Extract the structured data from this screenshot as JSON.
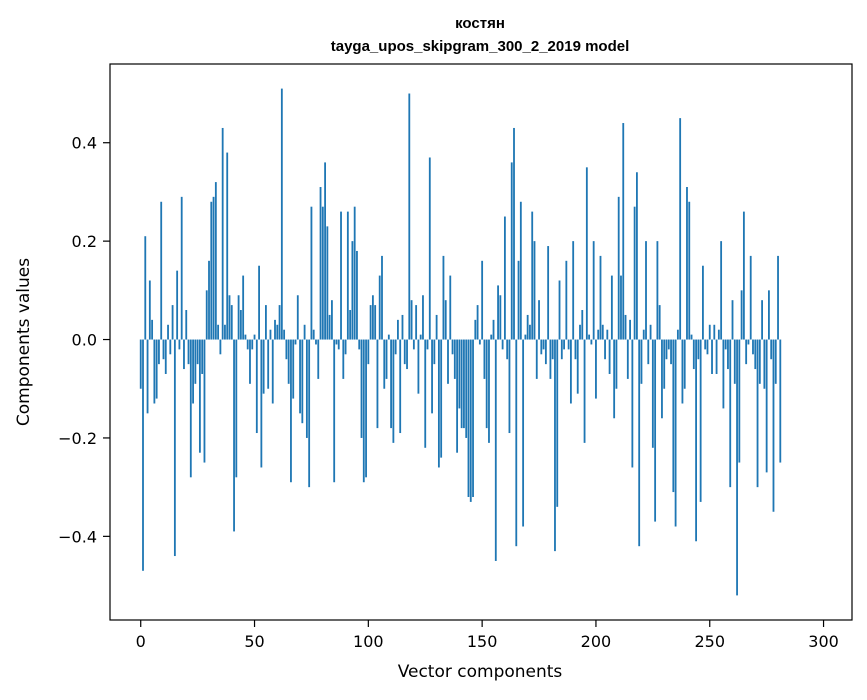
{
  "chart_data": {
    "type": "bar",
    "title": "костян",
    "subtitle": "tayga_upos_skipgram_300_2_2019 model",
    "xlabel": "Vector components",
    "ylabel": "Components values",
    "xlim": [
      -13.5,
      312.5
    ],
    "ylim": [
      -0.57,
      0.56
    ],
    "xticks": [
      0,
      50,
      100,
      150,
      200,
      250,
      300
    ],
    "yticks": [
      -0.4,
      -0.2,
      0.0,
      0.2,
      0.4
    ],
    "xtick_labels": [
      "0",
      "50",
      "100",
      "150",
      "200",
      "250",
      "300"
    ],
    "ytick_labels": [
      "−0.4",
      "−0.2",
      "0.0",
      "0.2",
      "0.4"
    ],
    "bar_color": "#1f77b4",
    "values": [
      -0.1,
      -0.47,
      0.21,
      -0.15,
      0.12,
      0.04,
      -0.13,
      -0.12,
      -0.05,
      0.28,
      -0.04,
      -0.07,
      0.03,
      -0.03,
      0.07,
      -0.44,
      0.14,
      -0.02,
      0.29,
      -0.06,
      0.06,
      -0.05,
      -0.28,
      -0.13,
      -0.09,
      -0.05,
      -0.23,
      -0.07,
      -0.25,
      0.1,
      0.16,
      0.28,
      0.29,
      0.32,
      0.03,
      -0.03,
      0.43,
      0.03,
      0.38,
      0.09,
      0.07,
      -0.39,
      -0.28,
      0.09,
      0.06,
      0.13,
      0.01,
      -0.02,
      -0.09,
      -0.02,
      0.01,
      -0.19,
      0.15,
      -0.26,
      -0.11,
      0.07,
      -0.1,
      0.02,
      -0.13,
      0.04,
      0.03,
      0.07,
      0.51,
      0.02,
      -0.04,
      -0.09,
      -0.29,
      -0.12,
      -0.01,
      0.09,
      -0.15,
      -0.17,
      0.03,
      -0.2,
      -0.3,
      0.27,
      0.02,
      -0.01,
      -0.08,
      0.31,
      0.27,
      0.36,
      0.23,
      0.05,
      0.08,
      -0.29,
      -0.01,
      -0.02,
      0.26,
      -0.08,
      -0.03,
      0.26,
      0.06,
      0.2,
      0.27,
      0.18,
      -0.02,
      -0.2,
      -0.29,
      -0.28,
      -0.05,
      0.07,
      0.09,
      0.07,
      -0.18,
      0.13,
      0.17,
      -0.1,
      -0.08,
      0.01,
      -0.18,
      -0.21,
      -0.03,
      0.04,
      -0.19,
      0.05,
      -0.05,
      -0.06,
      0.5,
      0.08,
      -0.02,
      0.07,
      -0.11,
      0.01,
      0.09,
      -0.22,
      -0.02,
      0.37,
      -0.15,
      -0.05,
      0.05,
      -0.26,
      -0.24,
      0.17,
      0.08,
      -0.09,
      0.13,
      -0.03,
      -0.08,
      -0.23,
      -0.14,
      -0.18,
      -0.18,
      -0.2,
      -0.32,
      -0.33,
      -0.32,
      0.04,
      0.07,
      -0.01,
      0.16,
      -0.08,
      -0.18,
      -0.21,
      0.01,
      0.04,
      -0.45,
      0.11,
      0.09,
      -0.02,
      0.25,
      -0.04,
      -0.19,
      0.36,
      0.43,
      -0.42,
      0.16,
      0.28,
      -0.38,
      0.01,
      0.05,
      0.03,
      0.26,
      0.2,
      -0.08,
      0.08,
      -0.03,
      -0.02,
      -0.05,
      0.19,
      -0.08,
      -0.04,
      -0.43,
      -0.34,
      0.12,
      -0.04,
      -0.02,
      0.16,
      -0.02,
      -0.13,
      0.2,
      -0.04,
      -0.11,
      0.03,
      0.06,
      -0.21,
      0.35,
      0.01,
      -0.01,
      0.2,
      -0.12,
      0.02,
      0.17,
      0.03,
      -0.04,
      0.02,
      -0.07,
      0.13,
      -0.16,
      -0.1,
      0.29,
      0.13,
      0.44,
      0.05,
      -0.08,
      0.04,
      -0.26,
      0.27,
      0.34,
      -0.42,
      -0.09,
      0.02,
      0.2,
      -0.05,
      0.03,
      -0.22,
      -0.37,
      0.2,
      0.07,
      -0.16,
      -0.1,
      -0.04,
      -0.02,
      -0.05,
      -0.31,
      -0.38,
      0.02,
      0.45,
      -0.13,
      -0.1,
      0.31,
      0.28,
      0.01,
      -0.06,
      -0.41,
      -0.04,
      -0.33,
      0.15,
      -0.02,
      -0.03,
      0.03,
      -0.07,
      0.03,
      -0.07,
      0.02,
      0.2,
      -0.14,
      -0.02,
      -0.06,
      -0.3,
      0.08,
      -0.09,
      -0.52,
      -0.25,
      0.1,
      0.26,
      -0.05,
      -0.01,
      0.17,
      -0.03,
      -0.06,
      -0.3,
      -0.09,
      0.08,
      -0.1,
      -0.27,
      0.1,
      -0.04,
      -0.35,
      -0.09,
      0.17,
      -0.25
    ]
  }
}
